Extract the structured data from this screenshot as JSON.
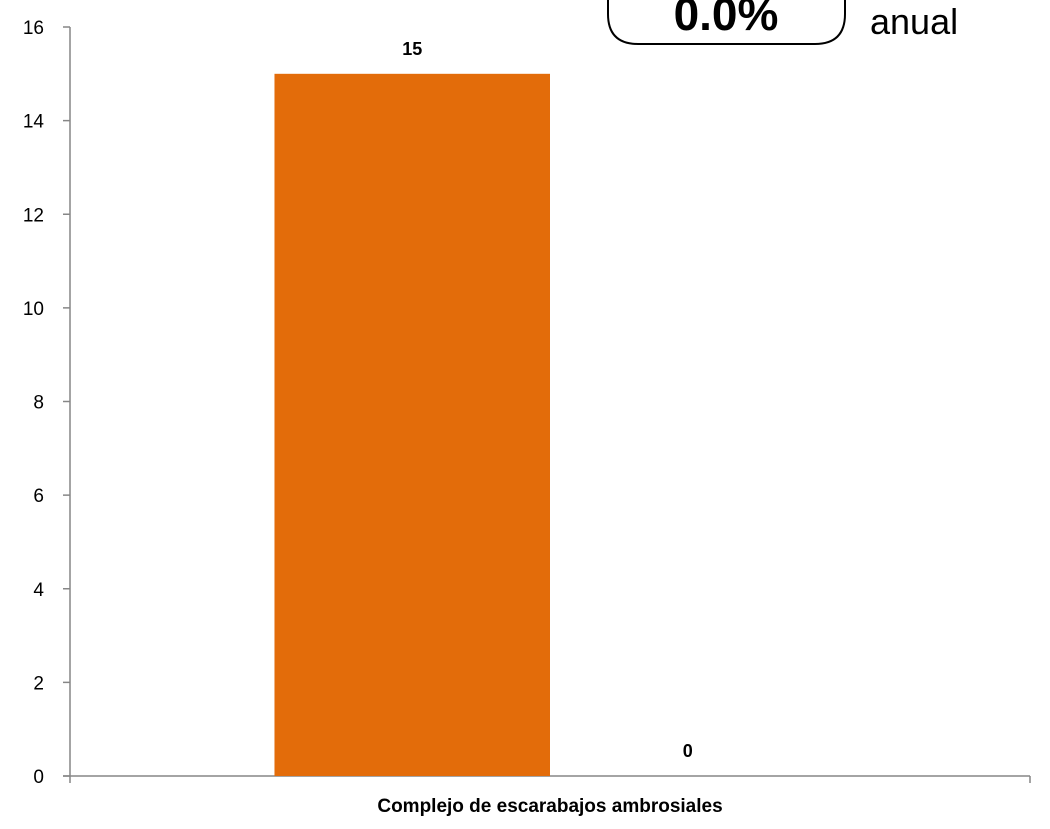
{
  "chart_data": {
    "type": "bar",
    "categories": [
      "Complejo de escarabajos ambrosiales"
    ],
    "series": [
      {
        "values": [
          15
        ],
        "color": "#E36C0A"
      },
      {
        "values": [
          0
        ],
        "color": "#7F7F7F"
      }
    ],
    "data_labels": [
      "15",
      "0"
    ],
    "yticks": [
      0,
      2,
      4,
      6,
      8,
      10,
      12,
      14,
      16
    ],
    "ylim": [
      0,
      16
    ],
    "grid": false,
    "legend": "none",
    "title": "",
    "xlabel": "",
    "ylabel": ""
  },
  "badge": {
    "value": "0.0%",
    "label": "anual"
  }
}
